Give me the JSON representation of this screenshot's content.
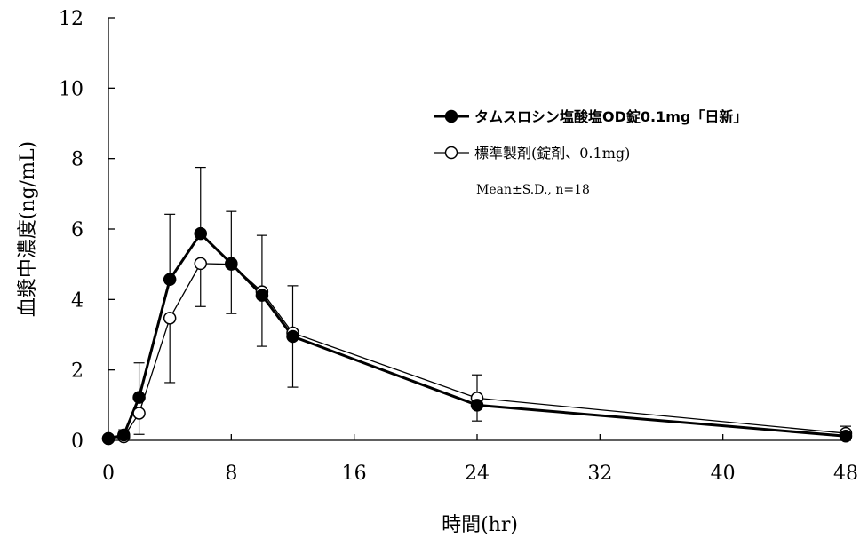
{
  "chart_data": {
    "type": "line",
    "xlabel": "時間(hr)",
    "ylabel": "血漿中濃度(ng/mL)",
    "xlim": [
      0,
      48
    ],
    "ylim": [
      0,
      12
    ],
    "xticks": [
      0,
      8,
      16,
      24,
      32,
      40,
      48
    ],
    "yticks": [
      0,
      2,
      4,
      6,
      8,
      10,
      12
    ],
    "grid": false,
    "legend_position": "top-right",
    "note": "Mean±S.D., n=18",
    "series": [
      {
        "name": "タムスロシン塩酸塩OD錠0.1mg「日新」",
        "marker": "filled-circle",
        "color": "#000000",
        "x": [
          0,
          1,
          2,
          4,
          6,
          8,
          10,
          12,
          24,
          48
        ],
        "y": [
          0.05,
          0.15,
          1.22,
          4.57,
          5.87,
          5.02,
          4.12,
          2.95,
          1.0,
          0.12
        ],
        "sd": [
          0,
          0.15,
          0.98,
          1.85,
          1.88,
          1.48,
          1.45,
          1.44,
          0.45,
          0.2
        ]
      },
      {
        "name": "標準製剤(錠剤、0.1mg)",
        "marker": "open-circle",
        "color": "#000000",
        "x": [
          0,
          1,
          2,
          4,
          6,
          8,
          10,
          12,
          24,
          48
        ],
        "y": [
          0.05,
          0.1,
          0.77,
          3.47,
          5.02,
          5.0,
          4.22,
          3.05,
          1.2,
          0.2
        ],
        "sd": [
          0,
          0.1,
          0.6,
          1.83,
          1.22,
          1.4,
          1.6,
          1.34,
          0.66,
          0.2
        ]
      }
    ]
  }
}
